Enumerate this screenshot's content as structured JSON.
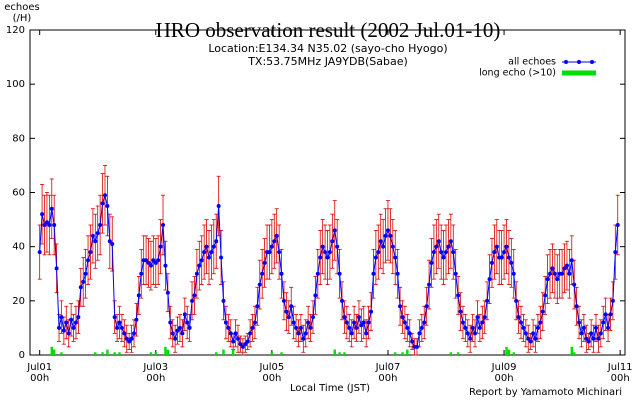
{
  "chart_data": {
    "type": "line",
    "title": "HRO observation result (2002 Jul.01-10)",
    "subtitles": [
      "Location:E134.34 N35.02 (sayo-cho Hyogo)",
      "TX:53.75MHz JA9YDB(Sabae)"
    ],
    "ylabel": "echoes",
    "yunit": "(/H)",
    "xlabel": "Local Time (JST)",
    "credit": "Report by Yamamoto Michinari",
    "xlim": [
      -4,
      242
    ],
    "ylim": [
      0,
      120
    ],
    "yticks": [
      0,
      20,
      40,
      60,
      80,
      100,
      120
    ],
    "xticks": [
      {
        "value": 0,
        "label": "Jul01",
        "time": "00h"
      },
      {
        "value": 48,
        "label": "Jul03",
        "time": "00h"
      },
      {
        "value": 96,
        "label": "Jul05",
        "time": "00h"
      },
      {
        "value": 144,
        "label": "Jul07",
        "time": "00h"
      },
      {
        "value": 192,
        "label": "Jul09",
        "time": "00h"
      },
      {
        "value": 240,
        "label": "Jul11",
        "time": "00h"
      }
    ],
    "series": [
      {
        "name": "all echoes",
        "type": "line",
        "color": "#0000ff",
        "error_color": "#d40000",
        "values": [
          38,
          52,
          48,
          49,
          48,
          54,
          48,
          32,
          10,
          14,
          9,
          12,
          8,
          13,
          10,
          12,
          14,
          25,
          27,
          30,
          35,
          38,
          44,
          42,
          45,
          48,
          56,
          59,
          55,
          42,
          41,
          14,
          10,
          12,
          10,
          8,
          6,
          5,
          6,
          8,
          13,
          22,
          30,
          35,
          35,
          34,
          33,
          35,
          34,
          35,
          40,
          48,
          33,
          23,
          12,
          8,
          6,
          9,
          10,
          8,
          15,
          12,
          10,
          20,
          22,
          30,
          33,
          35,
          38,
          40,
          36,
          38,
          40,
          42,
          55,
          36,
          20,
          12,
          10,
          8,
          5,
          8,
          6,
          4,
          3,
          4,
          5,
          8,
          10,
          12,
          18,
          26,
          30,
          34,
          38,
          38,
          40,
          42,
          44,
          38,
          30,
          20,
          16,
          14,
          18,
          12,
          10,
          8,
          10,
          6,
          8,
          12,
          10,
          14,
          22,
          30,
          36,
          40,
          38,
          36,
          38,
          42,
          46,
          40,
          30,
          20,
          14,
          12,
          10,
          8,
          12,
          10,
          14,
          11,
          12,
          8,
          12,
          16,
          30,
          36,
          38,
          42,
          40,
          44,
          46,
          44,
          40,
          36,
          30,
          18,
          14,
          12,
          10,
          8,
          5,
          3,
          3,
          8,
          10,
          12,
          18,
          26,
          34,
          38,
          40,
          42,
          38,
          36,
          38,
          40,
          42,
          38,
          30,
          22,
          16,
          12,
          10,
          8,
          6,
          10,
          8,
          14,
          10,
          12,
          14,
          20,
          28,
          34,
          38,
          40,
          36,
          36,
          38,
          40,
          36,
          34,
          30,
          20,
          14,
          12,
          10,
          8,
          6,
          5,
          8,
          6,
          10,
          12,
          16,
          22,
          28,
          30,
          32,
          30,
          28,
          30,
          30,
          32,
          33,
          30,
          35,
          26,
          18,
          12,
          8,
          10,
          6,
          5,
          8,
          6,
          10,
          6,
          8,
          12,
          15,
          10,
          15,
          20,
          38,
          48
        ],
        "errors": [
          10,
          11,
          11,
          11,
          11,
          11,
          11,
          9,
          5,
          6,
          5,
          6,
          5,
          6,
          5,
          6,
          6,
          7,
          9,
          9,
          9,
          10,
          10,
          10,
          10,
          11,
          11,
          11,
          11,
          10,
          10,
          6,
          5,
          6,
          5,
          5,
          5,
          3,
          5,
          5,
          6,
          7,
          9,
          9,
          9,
          9,
          9,
          9,
          9,
          9,
          10,
          11,
          9,
          7,
          6,
          5,
          5,
          5,
          5,
          5,
          6,
          6,
          5,
          7,
          7,
          9,
          9,
          9,
          10,
          10,
          10,
          10,
          10,
          10,
          11,
          10,
          7,
          6,
          5,
          5,
          3,
          5,
          5,
          3,
          3,
          3,
          3,
          5,
          5,
          6,
          7,
          9,
          9,
          9,
          10,
          10,
          10,
          10,
          10,
          10,
          9,
          7,
          7,
          6,
          7,
          6,
          5,
          5,
          5,
          5,
          5,
          6,
          5,
          6,
          7,
          9,
          10,
          10,
          10,
          10,
          10,
          10,
          11,
          10,
          9,
          7,
          6,
          6,
          5,
          5,
          6,
          5,
          6,
          6,
          6,
          5,
          6,
          7,
          9,
          10,
          10,
          10,
          10,
          10,
          11,
          10,
          10,
          10,
          9,
          7,
          6,
          6,
          5,
          5,
          3,
          3,
          3,
          5,
          5,
          6,
          7,
          9,
          9,
          10,
          10,
          10,
          10,
          10,
          10,
          10,
          10,
          10,
          9,
          7,
          7,
          6,
          5,
          5,
          5,
          5,
          5,
          6,
          5,
          6,
          6,
          7,
          9,
          9,
          10,
          10,
          10,
          10,
          10,
          10,
          10,
          9,
          9,
          7,
          6,
          6,
          5,
          5,
          5,
          3,
          5,
          5,
          5,
          6,
          7,
          7,
          9,
          9,
          9,
          9,
          9,
          9,
          9,
          9,
          9,
          9,
          9,
          9,
          7,
          6,
          5,
          5,
          5,
          3,
          5,
          5,
          5,
          5,
          5,
          6,
          6,
          5,
          6,
          7,
          10,
          11
        ]
      },
      {
        "name": "long echo (>10)",
        "type": "bar",
        "color": "#00dd00",
        "values": [
          0,
          0,
          0,
          0,
          0,
          3,
          2,
          0,
          0,
          1,
          0,
          0,
          0,
          0,
          0,
          0,
          0,
          0,
          0,
          0,
          0,
          0,
          0,
          1,
          0,
          0,
          1,
          0,
          2,
          0,
          0,
          1,
          0,
          1,
          0,
          0,
          0,
          0,
          0,
          0,
          0,
          0,
          0,
          0,
          0,
          0,
          1,
          0,
          1,
          0,
          0,
          0,
          3,
          2,
          0,
          0,
          0,
          0,
          0,
          0,
          0,
          0,
          0,
          0,
          0,
          0,
          0,
          0,
          0,
          0,
          0,
          0,
          0,
          1,
          0,
          0,
          2,
          0,
          0,
          0,
          2,
          0,
          0,
          0,
          0,
          0,
          0,
          0,
          0,
          0,
          0,
          0,
          0,
          0,
          0,
          0,
          1,
          0,
          0,
          0,
          1,
          0,
          0,
          0,
          0,
          0,
          0,
          0,
          0,
          0,
          0,
          0,
          0,
          0,
          0,
          0,
          0,
          0,
          0,
          0,
          0,
          0,
          2,
          0,
          1,
          0,
          1,
          0,
          0,
          0,
          0,
          0,
          0,
          0,
          0,
          0,
          0,
          0,
          0,
          0,
          0,
          0,
          0,
          0,
          0,
          0,
          0,
          1,
          0,
          0,
          1,
          0,
          2,
          0,
          0,
          0,
          0,
          0,
          0,
          0,
          0,
          0,
          0,
          0,
          0,
          0,
          0,
          0,
          0,
          0,
          1,
          0,
          0,
          1,
          0,
          0,
          0,
          0,
          0,
          0,
          0,
          0,
          0,
          0,
          0,
          0,
          0,
          0,
          0,
          0,
          0,
          0,
          0,
          3,
          2,
          0,
          1,
          0,
          0,
          0,
          0,
          0,
          0,
          0,
          0,
          0,
          0,
          0,
          0,
          0,
          0,
          0,
          0,
          0,
          0,
          0,
          0,
          0,
          0,
          0,
          3,
          1,
          0,
          0,
          0,
          0,
          0,
          0,
          0,
          0,
          0,
          0,
          0,
          0,
          0,
          0,
          0,
          0,
          0,
          0
        ]
      }
    ]
  }
}
